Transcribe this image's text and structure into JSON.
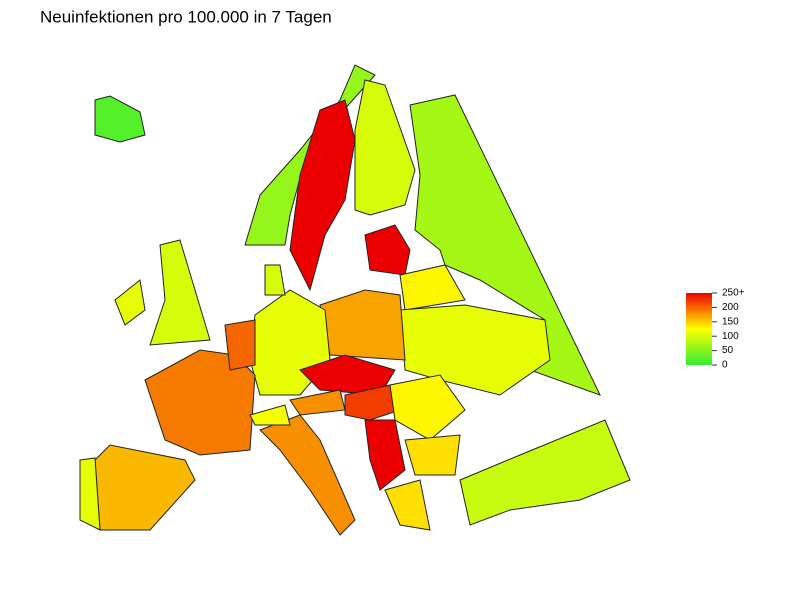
{
  "chart_data": {
    "type": "choropleth",
    "title": "Neuinfektionen pro 100.000 in 7 Tagen",
    "values": [
      20,
      60,
      250,
      100,
      70,
      250,
      130,
      110,
      170,
      110,
      250,
      180,
      220,
      130,
      190,
      160,
      110,
      180,
      100,
      110,
      250,
      140,
      140,
      90,
      120,
      200,
      100
    ],
    "clim": [
      0,
      250
    ],
    "colors": [
      "#33ee33",
      "#ffff00",
      "#ee0000"
    ],
    "cticks": [
      0,
      50,
      100,
      150,
      200,
      {
        "value": 250,
        "label": "250+"
      }
    ]
  }
}
